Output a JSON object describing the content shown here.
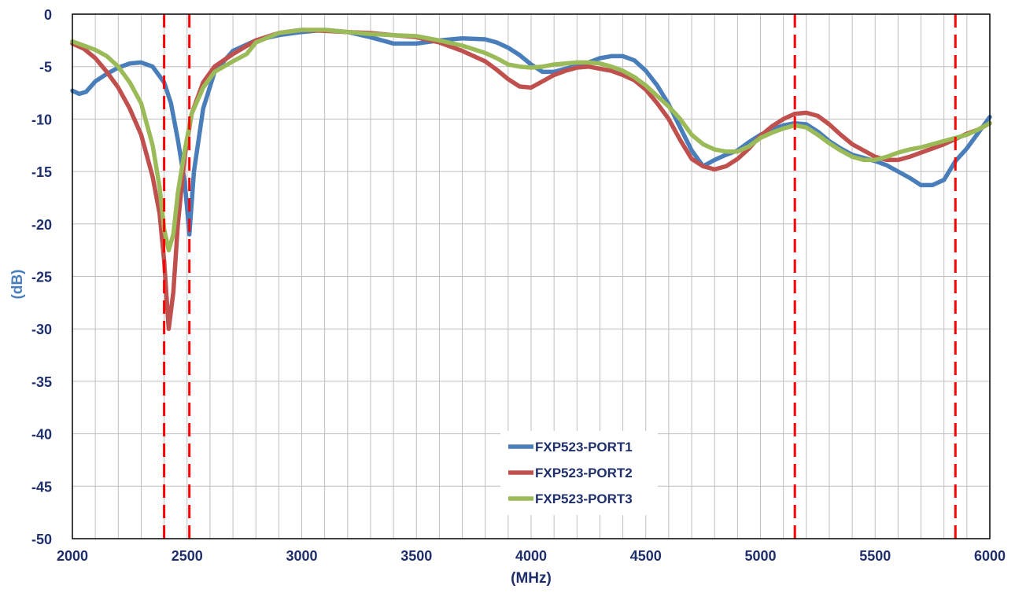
{
  "chart_data": {
    "type": "line",
    "title": "",
    "xlabel": "(MHz)",
    "ylabel": "(dB)",
    "xlim": [
      2000,
      6000
    ],
    "ylim": [
      -50,
      0
    ],
    "xticks": [
      2000,
      2500,
      3000,
      3500,
      4000,
      4500,
      5000,
      5500,
      6000
    ],
    "xtick_labels": [
      "2000",
      "2500",
      "3000",
      "3500",
      "4000",
      "4500",
      "5000",
      "5500",
      "6000"
    ],
    "yticks": [
      0,
      -5,
      -10,
      -15,
      -20,
      -25,
      -30,
      -35,
      -40,
      -45,
      -50
    ],
    "ytick_labels": [
      "0",
      "-5",
      "-10",
      "-15",
      "-20",
      "-25",
      "-30",
      "-35",
      "-40",
      "-45",
      "-50"
    ],
    "grid": true,
    "minor_x_step": 100,
    "legend_position": "bottom-center",
    "reference_lines_x": [
      2400,
      2510,
      5150,
      5850
    ],
    "reference_line_color": "#ff0000",
    "series": [
      {
        "name": "FXP523-PORT1",
        "color": "#4a7ebb",
        "x": [
          2000,
          2030,
          2060,
          2100,
          2150,
          2200,
          2250,
          2300,
          2350,
          2400,
          2430,
          2460,
          2490,
          2510,
          2530,
          2570,
          2620,
          2700,
          2800,
          2900,
          3000,
          3100,
          3200,
          3300,
          3400,
          3500,
          3600,
          3700,
          3800,
          3850,
          3900,
          3950,
          4000,
          4050,
          4100,
          4150,
          4200,
          4250,
          4300,
          4350,
          4400,
          4450,
          4500,
          4550,
          4600,
          4650,
          4700,
          4750,
          4800,
          4850,
          4900,
          4950,
          5000,
          5050,
          5100,
          5150,
          5200,
          5250,
          5300,
          5350,
          5400,
          5450,
          5500,
          5550,
          5600,
          5650,
          5700,
          5750,
          5800,
          5850,
          5900,
          5950,
          6000
        ],
        "y": [
          -7.3,
          -7.6,
          -7.4,
          -6.4,
          -5.7,
          -5.1,
          -4.7,
          -4.6,
          -5.0,
          -6.5,
          -8.5,
          -12.0,
          -16.0,
          -21.0,
          -15.0,
          -9.0,
          -5.5,
          -3.5,
          -2.5,
          -2.0,
          -1.7,
          -1.5,
          -1.7,
          -2.2,
          -2.8,
          -2.8,
          -2.5,
          -2.3,
          -2.4,
          -2.7,
          -3.2,
          -3.9,
          -4.8,
          -5.5,
          -5.5,
          -5.2,
          -4.9,
          -4.6,
          -4.2,
          -4.0,
          -4.0,
          -4.4,
          -5.4,
          -6.8,
          -8.6,
          -10.8,
          -13.0,
          -14.5,
          -13.9,
          -13.4,
          -13.0,
          -12.2,
          -11.5,
          -11.0,
          -10.6,
          -10.4,
          -10.5,
          -11.2,
          -12.1,
          -12.8,
          -13.4,
          -13.7,
          -14.0,
          -14.4,
          -15.0,
          -15.6,
          -16.3,
          -16.3,
          -15.8,
          -14.0,
          -12.8,
          -11.3,
          -9.8
        ]
      },
      {
        "name": "FXP523-PORT2",
        "color": "#c0504d",
        "x": [
          2000,
          2050,
          2100,
          2150,
          2200,
          2250,
          2300,
          2350,
          2380,
          2400,
          2420,
          2440,
          2460,
          2490,
          2520,
          2570,
          2620,
          2700,
          2800,
          2900,
          3000,
          3100,
          3200,
          3300,
          3400,
          3500,
          3600,
          3700,
          3800,
          3850,
          3900,
          3950,
          4000,
          4050,
          4100,
          4150,
          4200,
          4250,
          4300,
          4350,
          4400,
          4450,
          4500,
          4550,
          4600,
          4650,
          4700,
          4750,
          4800,
          4850,
          4900,
          4950,
          5000,
          5050,
          5100,
          5150,
          5200,
          5250,
          5300,
          5350,
          5400,
          5450,
          5500,
          5550,
          5600,
          5650,
          5700,
          5750,
          5800,
          5850,
          5900,
          5950,
          6000
        ],
        "y": [
          -2.8,
          -3.3,
          -4.2,
          -5.5,
          -7.0,
          -9.0,
          -11.5,
          -15.5,
          -19.0,
          -23.5,
          -30.0,
          -26.5,
          -20.0,
          -13.5,
          -9.5,
          -6.5,
          -5.0,
          -3.8,
          -2.5,
          -1.8,
          -1.5,
          -1.6,
          -1.7,
          -1.8,
          -2.0,
          -2.2,
          -2.7,
          -3.5,
          -4.5,
          -5.3,
          -6.2,
          -6.9,
          -7.0,
          -6.4,
          -5.8,
          -5.4,
          -5.1,
          -5.0,
          -5.2,
          -5.4,
          -5.8,
          -6.3,
          -7.2,
          -8.5,
          -10.0,
          -12.0,
          -13.8,
          -14.5,
          -14.8,
          -14.5,
          -13.8,
          -12.8,
          -11.6,
          -10.7,
          -10.0,
          -9.5,
          -9.4,
          -9.7,
          -10.5,
          -11.5,
          -12.4,
          -13.0,
          -13.6,
          -13.9,
          -13.9,
          -13.6,
          -13.2,
          -12.8,
          -12.4,
          -11.9,
          -11.4,
          -11.0,
          -10.4
        ]
      },
      {
        "name": "FXP523-PORT3",
        "color": "#9bbb59",
        "x": [
          2000,
          2050,
          2100,
          2150,
          2200,
          2250,
          2300,
          2350,
          2380,
          2400,
          2420,
          2440,
          2460,
          2490,
          2520,
          2570,
          2620,
          2700,
          2760,
          2800,
          2900,
          3000,
          3100,
          3200,
          3300,
          3400,
          3500,
          3600,
          3700,
          3800,
          3850,
          3900,
          3950,
          4000,
          4050,
          4100,
          4150,
          4200,
          4250,
          4300,
          4350,
          4400,
          4450,
          4500,
          4550,
          4600,
          4650,
          4700,
          4750,
          4800,
          4850,
          4900,
          4950,
          5000,
          5050,
          5100,
          5150,
          5200,
          5250,
          5300,
          5350,
          5400,
          5450,
          5500,
          5550,
          5600,
          5650,
          5700,
          5750,
          5800,
          5850,
          5900,
          5950,
          6000
        ],
        "y": [
          -2.6,
          -3.0,
          -3.4,
          -4.0,
          -5.0,
          -6.5,
          -8.5,
          -12.5,
          -16.5,
          -20.5,
          -22.5,
          -21.0,
          -17.0,
          -13.0,
          -9.5,
          -7.0,
          -5.5,
          -4.5,
          -3.8,
          -2.7,
          -1.8,
          -1.5,
          -1.5,
          -1.7,
          -1.9,
          -2.0,
          -2.1,
          -2.5,
          -3.0,
          -3.7,
          -4.2,
          -4.8,
          -5.0,
          -5.1,
          -5.0,
          -4.8,
          -4.7,
          -4.6,
          -4.6,
          -4.7,
          -5.0,
          -5.4,
          -6.0,
          -6.8,
          -7.8,
          -8.8,
          -10.0,
          -11.5,
          -12.4,
          -12.9,
          -13.1,
          -13.1,
          -12.6,
          -11.8,
          -11.3,
          -10.9,
          -10.6,
          -10.8,
          -11.5,
          -12.3,
          -13.0,
          -13.6,
          -13.9,
          -13.9,
          -13.6,
          -13.2,
          -12.9,
          -12.7,
          -12.4,
          -12.1,
          -11.8,
          -11.5,
          -11.0,
          -10.4
        ]
      }
    ]
  }
}
